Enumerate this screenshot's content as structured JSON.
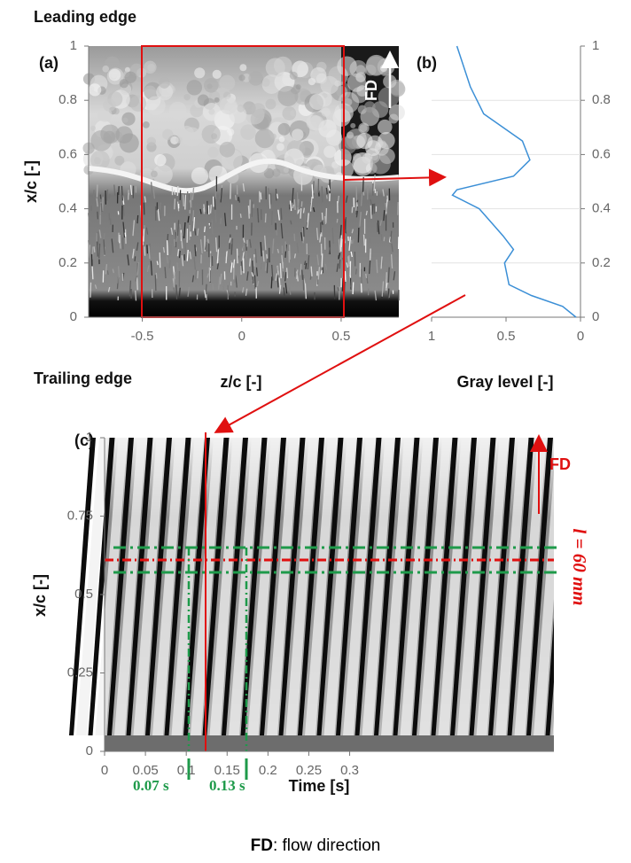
{
  "chart_data": [
    {
      "type": "image",
      "panel_label": "(a)",
      "top_label": "Leading edge",
      "bottom_label": "Trailing edge",
      "xlabel": "z/c [-]",
      "ylabel": "x/c [-]",
      "annotation": "FD",
      "xlim": [
        -0.77,
        0.79
      ],
      "ylim": [
        0,
        1
      ],
      "xticks": [
        -0.5,
        0,
        0.5
      ],
      "yticks": [
        0,
        0.2,
        0.4,
        0.6,
        0.8,
        1
      ]
    },
    {
      "type": "line",
      "panel_label": "(b)",
      "xlabel": "Gray level [-]",
      "color": "#3b8fd6",
      "x": [
        0.83,
        0.74,
        0.65,
        0.39,
        0.34,
        0.45,
        0.83,
        0.86,
        0.68,
        0.52,
        0.45,
        0.51,
        0.48,
        0.33,
        0.12,
        0.03
      ],
      "values": [
        1,
        0.85,
        0.75,
        0.65,
        0.58,
        0.52,
        0.47,
        0.45,
        0.4,
        0.3,
        0.25,
        0.2,
        0.12,
        0.08,
        0.04,
        0
      ],
      "xlim": [
        1,
        0
      ],
      "ylim": [
        0,
        1
      ],
      "xticks": [
        1,
        0.5,
        0
      ],
      "yticks": [
        0,
        0.2,
        0.4,
        0.6,
        0.8,
        1
      ],
      "grid": true
    },
    {
      "type": "image",
      "panel_label": "(c)",
      "xlabel": "Time [s]",
      "ylabel": "x/c [-]",
      "annotations": [
        "FD",
        "l = 60 mm",
        "0.07 s",
        "0.13 s"
      ],
      "xlim": [
        0,
        0.55
      ],
      "ylim": [
        0,
        1
      ],
      "xticks": [
        0,
        0.05,
        0.1,
        0.15,
        0.2,
        0.25,
        0.3
      ],
      "yticks": [
        0,
        0.25,
        0.5,
        0.75,
        1
      ]
    }
  ],
  "footer": {
    "abbr": "FD",
    "text": ": flow direction"
  }
}
